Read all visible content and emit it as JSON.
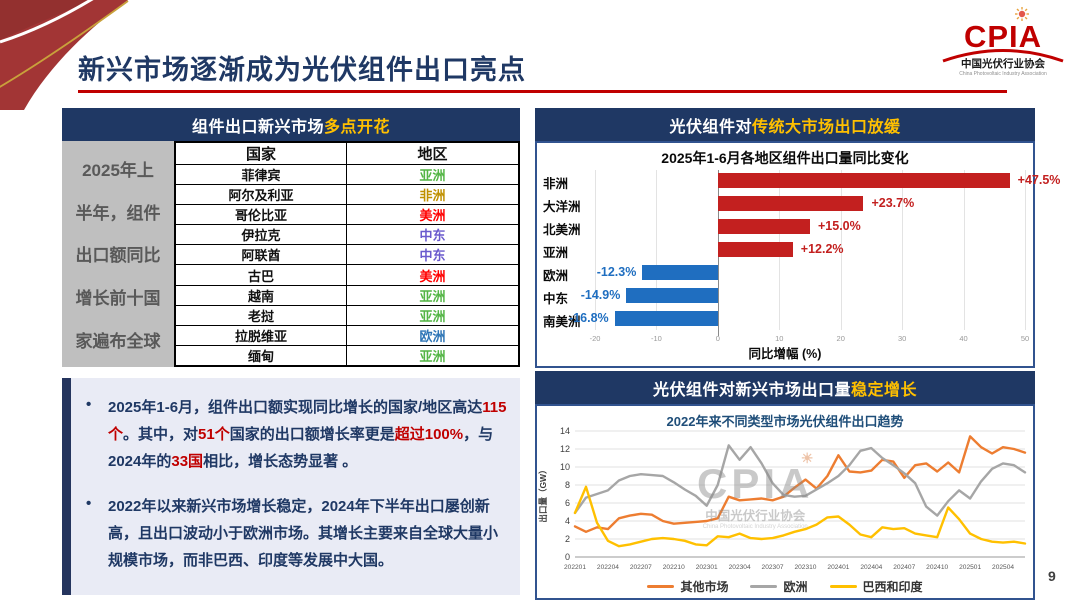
{
  "slide": {
    "title": "新兴市场逐渐成为光伏组件出口亮点",
    "page_number": "9"
  },
  "logo": {
    "acronym": "CPIA",
    "org_cn": "中国光伏行业协会",
    "org_en": "China Photovoltaic Industry Association"
  },
  "table_panel": {
    "title_white": "组件出口新兴市场",
    "title_yellow": "多点开花",
    "side_label_lines": [
      "2025年上",
      "半年，组件",
      "出口额同比",
      "增长前十国",
      "家遍布全球"
    ],
    "columns": [
      "国家",
      "地区"
    ],
    "rows": [
      {
        "country": "菲律宾",
        "region": "亚洲",
        "color": "#53B545"
      },
      {
        "country": "阿尔及利亚",
        "region": "非洲",
        "color": "#BF9000"
      },
      {
        "country": "哥伦比亚",
        "region": "美洲",
        "color": "#FF0000"
      },
      {
        "country": "伊拉克",
        "region": "中东",
        "color": "#6A5ACD"
      },
      {
        "country": "阿联酋",
        "region": "中东",
        "color": "#6A5ACD"
      },
      {
        "country": "古巴",
        "region": "美洲",
        "color": "#FF0000"
      },
      {
        "country": "越南",
        "region": "亚洲",
        "color": "#53B545"
      },
      {
        "country": "老挝",
        "region": "亚洲",
        "color": "#53B545"
      },
      {
        "country": "拉脱维亚",
        "region": "欧洲",
        "color": "#2E75B6"
      },
      {
        "country": "缅甸",
        "region": "亚洲",
        "color": "#53B545"
      }
    ]
  },
  "bullets_panel": {
    "items": [
      {
        "segments": [
          {
            "t": "2025年1-6月，组件出口额实现同比增长的国家/地区高达"
          },
          {
            "t": "115个",
            "hl": true
          },
          {
            "t": "。其中，对"
          },
          {
            "t": "51个",
            "hl": true
          },
          {
            "t": "国家的出口额增长率更是"
          },
          {
            "t": "超过100%",
            "hl": true
          },
          {
            "t": "，与2024年的"
          },
          {
            "t": "33国",
            "hl": true
          },
          {
            "t": "相比，增长态势显著 。"
          }
        ]
      },
      {
        "segments": [
          {
            "t": "2022年以来新兴市场增长稳定，2024年下半年出口屡创新高，且出口波动小于欧洲市场。其增长主要来自全球大量小规模市场，而非巴西、印度等发展中大国。"
          }
        ]
      }
    ]
  },
  "bar_panel": {
    "header_white": "光伏组件对",
    "header_yellow": "传统大市场出口放缓",
    "chart_data": {
      "type": "bar",
      "orientation": "horizontal",
      "title": "2025年1-6月各地区组件出口量同比变化",
      "categories": [
        "非洲",
        "大洋洲",
        "北美洲",
        "亚洲",
        "欧洲",
        "中东",
        "南美洲"
      ],
      "values": [
        47.5,
        23.7,
        15.0,
        12.2,
        -12.3,
        -14.9,
        -16.8
      ],
      "labels": [
        "+47.5%",
        "+23.7%",
        "+15.0%",
        "+12.2%",
        "-12.3%",
        "-14.9%",
        "-16.8%"
      ],
      "xlabel": "同比增幅 (%)",
      "xlim": [
        -20,
        50
      ],
      "xticks": [
        -20,
        -10,
        0,
        10,
        20,
        30,
        40,
        50
      ],
      "positive_color": "#C3201F",
      "negative_color": "#1F6EC0",
      "grid": true,
      "legend_position": "none"
    }
  },
  "line_panel": {
    "header_white": "光伏组件对新兴市场出口量",
    "header_yellow": "稳定增长",
    "watermark": {
      "acronym": "CPIA",
      "cn": "中国光伏行业协会",
      "en": "China Photovoltaic Industry Association"
    },
    "chart_data": {
      "type": "line",
      "title": "2022年来不同类型市场光伏组件出口趋势",
      "ylabel": "出口量（GW）",
      "ylim": [
        0,
        14
      ],
      "ytick_step": 2,
      "grid": true,
      "legend_position": "bottom",
      "x": [
        "202201",
        "202202",
        "202203",
        "202204",
        "202205",
        "202206",
        "202207",
        "202208",
        "202209",
        "202210",
        "202211",
        "202212",
        "202301",
        "202302",
        "202303",
        "202304",
        "202305",
        "202306",
        "202307",
        "202308",
        "202309",
        "202310",
        "202311",
        "202312",
        "202401",
        "202402",
        "202403",
        "202404",
        "202405",
        "202406",
        "202407",
        "202408",
        "202409",
        "202410",
        "202411",
        "202412",
        "202501",
        "202502",
        "202503",
        "202504",
        "202505",
        "202506"
      ],
      "xtick_labels": [
        "202201",
        "202204",
        "202207",
        "202210",
        "202301",
        "202304",
        "202307",
        "202310",
        "202401",
        "202404",
        "202407",
        "202410",
        "202501",
        "202504"
      ],
      "series": [
        {
          "name": "其他市场",
          "color": "#ED7D31",
          "values": [
            3.4,
            2.8,
            3.3,
            3.1,
            4.3,
            4.6,
            4.8,
            4.7,
            4.0,
            3.7,
            3.8,
            3.9,
            4.0,
            4.3,
            6.7,
            6.3,
            6.4,
            6.5,
            6.3,
            6.7,
            7.7,
            8.6,
            7.6,
            9.0,
            11.3,
            9.5,
            9.4,
            9.6,
            10.8,
            10.6,
            8.8,
            10.2,
            10.4,
            9.5,
            10.5,
            9.4,
            13.4,
            12.2,
            11.5,
            12.2,
            12.0,
            11.6
          ]
        },
        {
          "name": "欧洲",
          "color": "#A6A6A6",
          "values": [
            4.9,
            6.6,
            7.0,
            7.4,
            8.5,
            9.0,
            9.2,
            9.1,
            9.0,
            8.3,
            7.5,
            6.8,
            5.7,
            8.0,
            12.4,
            10.8,
            12.2,
            10.4,
            8.2,
            6.9,
            6.7,
            6.8,
            7.5,
            8.2,
            9.0,
            10.2,
            11.8,
            12.1,
            11.0,
            10.2,
            9.3,
            8.2,
            5.6,
            4.6,
            6.2,
            7.4,
            6.5,
            8.4,
            9.8,
            10.4,
            10.2,
            9.4
          ]
        },
        {
          "name": "巴西和印度",
          "color": "#FFC000",
          "values": [
            4.9,
            7.8,
            3.8,
            1.8,
            1.2,
            1.4,
            1.7,
            2.0,
            2.1,
            2.0,
            1.8,
            1.4,
            1.3,
            2.3,
            2.2,
            2.6,
            2.1,
            2.0,
            2.1,
            2.4,
            2.8,
            3.1,
            3.6,
            4.4,
            4.5,
            3.6,
            2.5,
            2.2,
            3.3,
            3.1,
            3.2,
            2.6,
            2.4,
            2.2,
            5.5,
            4.2,
            2.6,
            2.0,
            1.7,
            1.6,
            1.7,
            1.5
          ]
        }
      ]
    }
  }
}
